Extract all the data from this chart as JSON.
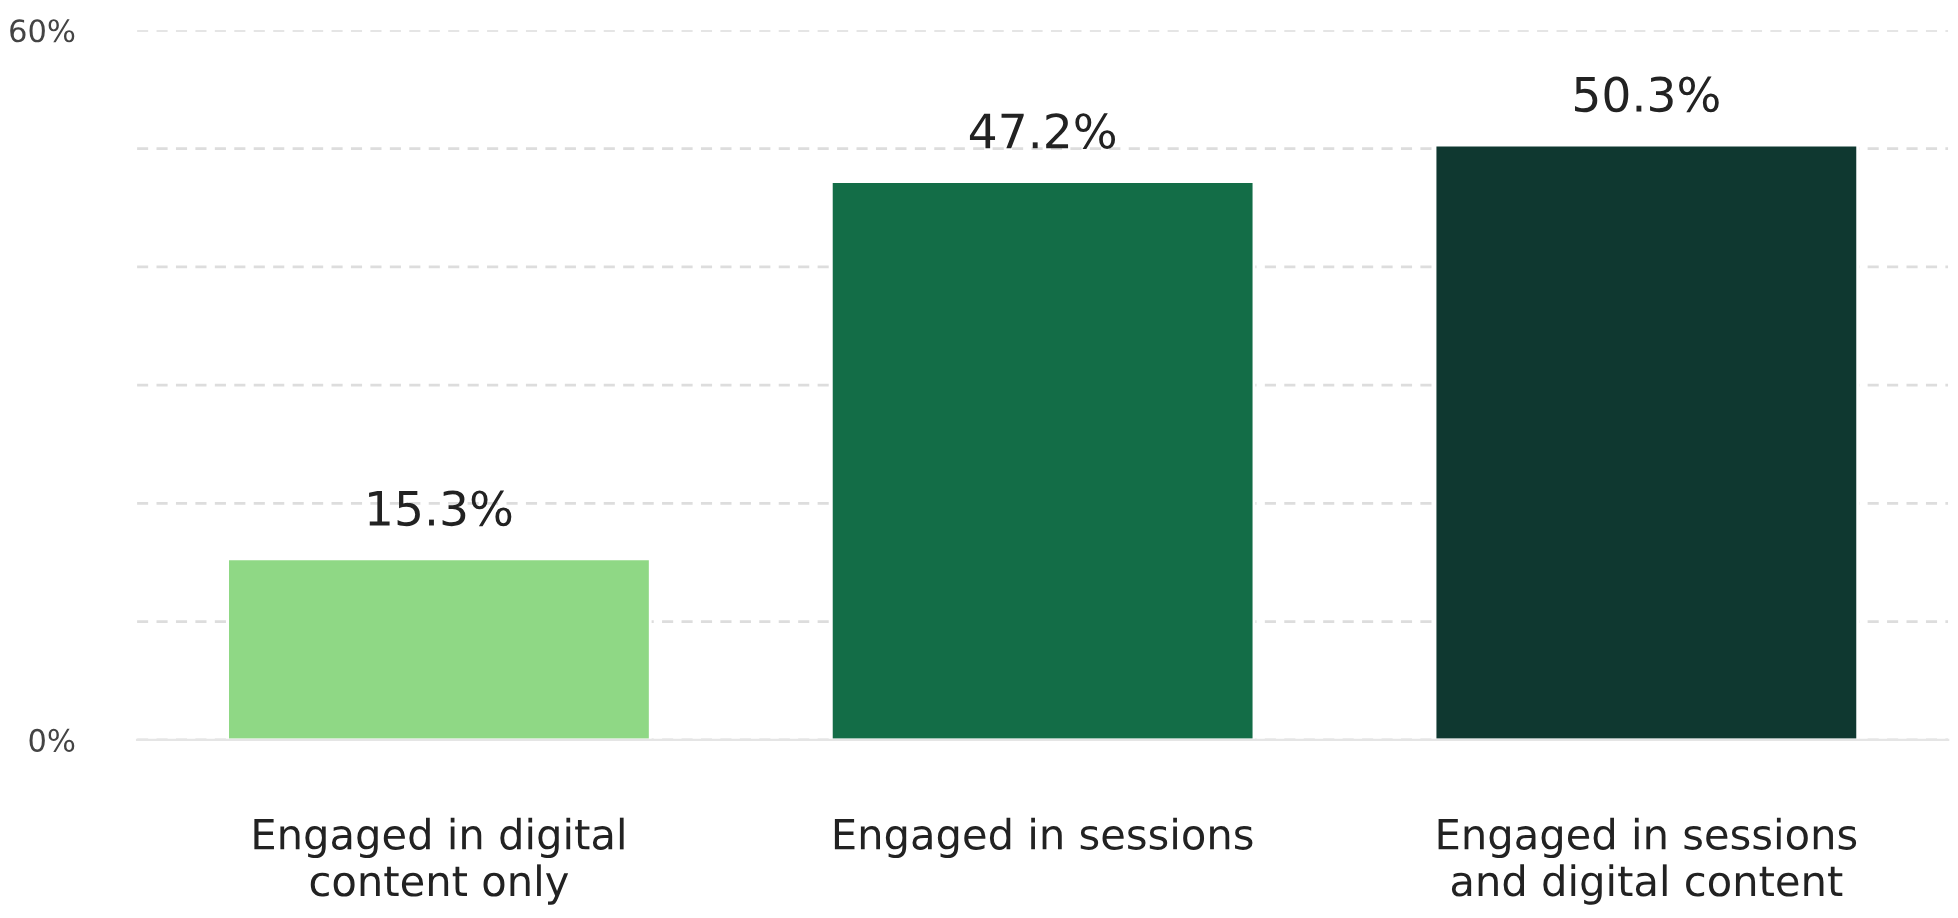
{
  "chart_data": {
    "type": "bar",
    "categories": [
      "Engaged in digital\ncontent only",
      "Engaged in sessions",
      "Engaged in sessions\nand digital content"
    ],
    "values": [
      15.3,
      47.2,
      50.3
    ],
    "colors": [
      "#8fd885",
      "#136d47",
      "#0f3830"
    ],
    "value_labels": [
      "15.3%",
      "47.2%",
      "50.3%"
    ],
    "ylim": [
      0,
      60
    ],
    "yticks": [
      {
        "value": 0,
        "label": "0%"
      },
      {
        "value": 10,
        "label": null
      },
      {
        "value": 20,
        "label": null
      },
      {
        "value": 30,
        "label": null
      },
      {
        "value": 40,
        "label": null
      },
      {
        "value": 50,
        "label": null
      },
      {
        "value": 60,
        "label": "60%"
      }
    ],
    "grid": "y"
  }
}
